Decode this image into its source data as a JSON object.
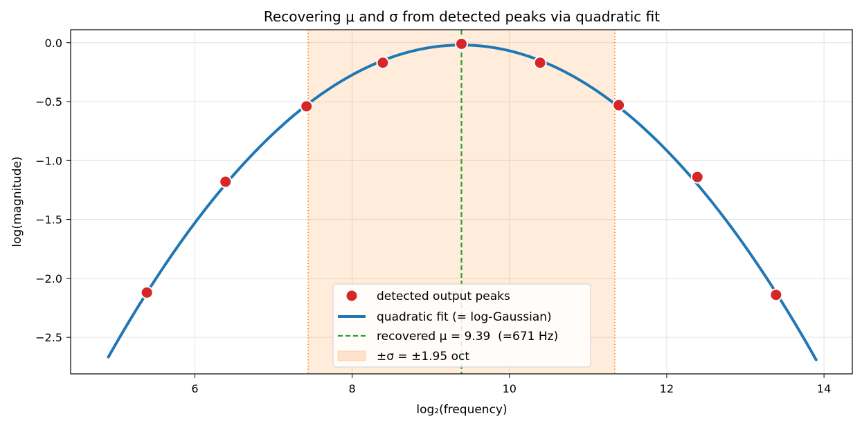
{
  "chart_data": {
    "type": "line",
    "title": "Recovering μ and σ from detected peaks via quadratic fit",
    "xlabel": "log₂(frequency)",
    "ylabel": "log(magnitude)",
    "xlim": [
      4.42,
      14.36
    ],
    "ylim": [
      -2.81,
      0.11
    ],
    "xticks": [
      6,
      8,
      10,
      12,
      14
    ],
    "xtick_labels": [
      "6",
      "8",
      "10",
      "12",
      "14"
    ],
    "yticks": [
      0.0,
      -0.5,
      -1.0,
      -1.5,
      -2.0,
      -2.5
    ],
    "ytick_labels": [
      "0.0",
      "−0.5",
      "−1.0",
      "−1.5",
      "−2.0",
      "−2.5"
    ],
    "grid": true,
    "legend_position": "bottom-center",
    "peaks": {
      "name": "detected output peaks",
      "color": "#d62728",
      "x": [
        5.39,
        6.39,
        7.42,
        8.39,
        9.39,
        10.39,
        11.39,
        12.39,
        13.39
      ],
      "y": [
        -2.12,
        -1.18,
        -0.54,
        -0.17,
        -0.01,
        -0.17,
        -0.53,
        -1.14,
        -2.14
      ]
    },
    "fit": {
      "name": "quadratic fit (= log-Gaussian)",
      "color": "#1f77b4",
      "x_range": [
        4.9,
        13.9
      ],
      "vertex_x": 9.39,
      "vertex_y": -0.02,
      "curvature": -0.1313
    },
    "mu_line": {
      "name": "recovered μ = 9.39  (=671 Hz)",
      "color": "#2ca02c",
      "x": 9.39
    },
    "sigma_band": {
      "name": "±σ = ±1.95 oct",
      "color": "#ff7f0e",
      "x_range": [
        7.44,
        11.34
      ]
    }
  }
}
